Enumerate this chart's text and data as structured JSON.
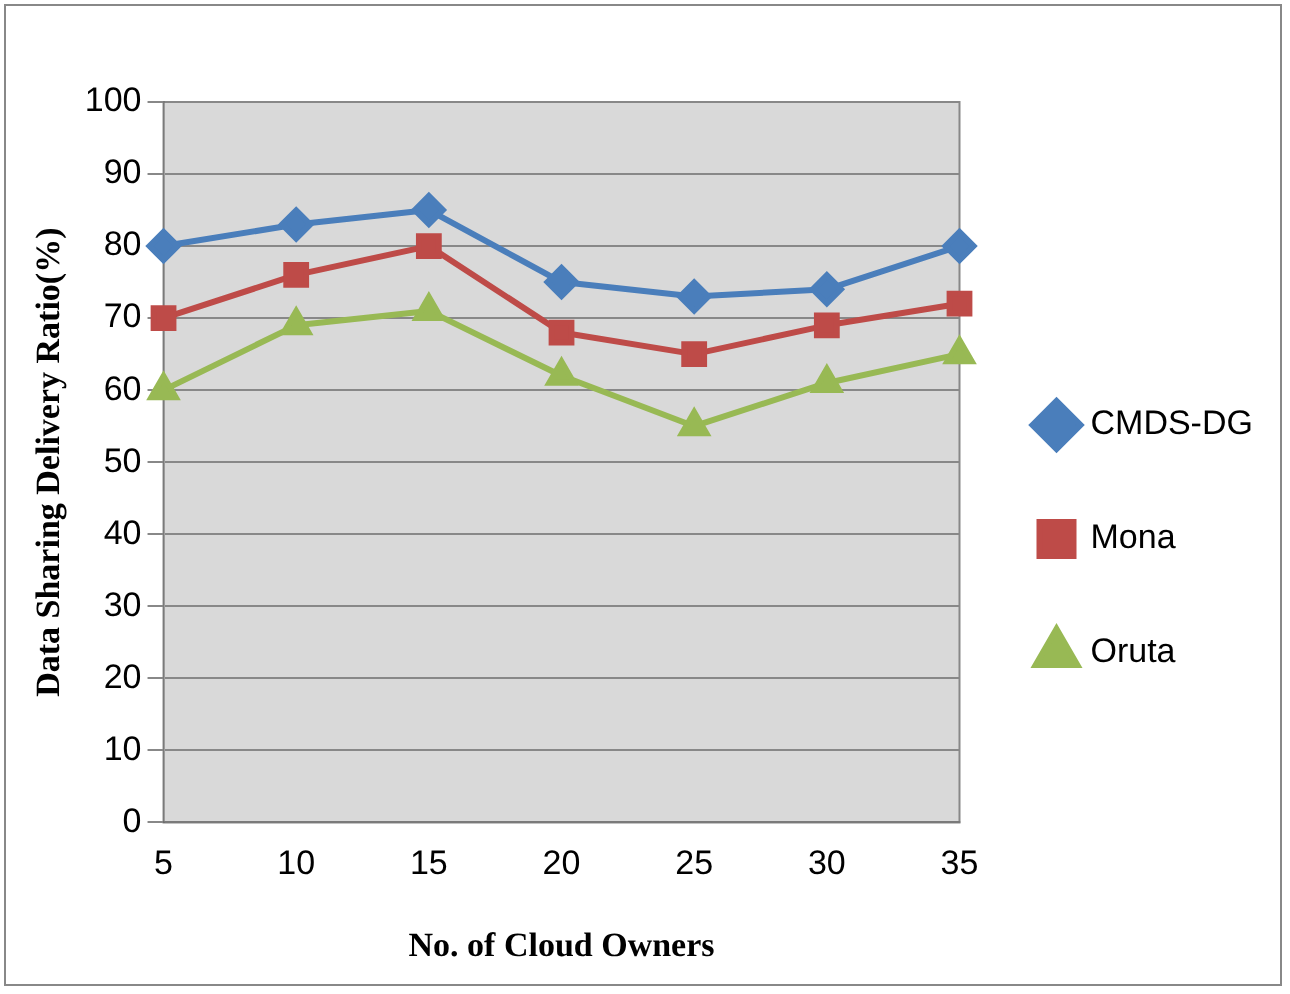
{
  "chart_data": {
    "type": "line",
    "xlabel": "No. of Cloud Owners",
    "ylabel": "Data Sharing Delivery Ratio(%)",
    "categories": [
      "5",
      "10",
      "15",
      "20",
      "25",
      "30",
      "35"
    ],
    "series": [
      {
        "name": "CMDS-DG",
        "color": "#4a7ebb",
        "marker": "diamond",
        "values": [
          80,
          83,
          85,
          75,
          73,
          74,
          80
        ]
      },
      {
        "name": "Mona",
        "color": "#be4b48",
        "marker": "square",
        "values": [
          70,
          76,
          80,
          68,
          65,
          69,
          72
        ]
      },
      {
        "name": "Oruta",
        "color": "#98b954",
        "marker": "triangle",
        "values": [
          60,
          69,
          71,
          62,
          55,
          61,
          65
        ]
      }
    ],
    "ylim": [
      0,
      100
    ],
    "yticks": [
      0,
      10,
      20,
      30,
      40,
      50,
      60,
      70,
      80,
      90,
      100
    ],
    "grid": "y",
    "legend": "right"
  }
}
